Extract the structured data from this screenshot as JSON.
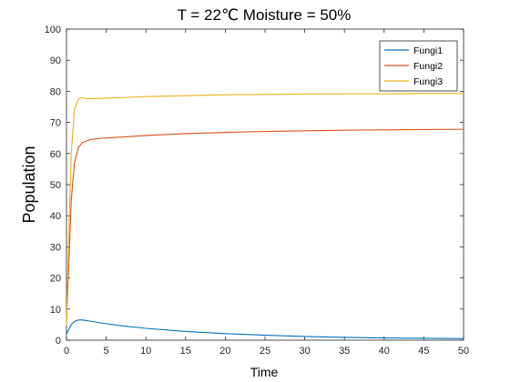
{
  "chart_data": {
    "type": "line",
    "title": "T = 22℃ Moisture = 50%",
    "xlabel": "Time",
    "ylabel": "Population",
    "xlim": [
      0,
      50
    ],
    "ylim": [
      0,
      100
    ],
    "xticks": [
      0,
      5,
      10,
      15,
      20,
      25,
      30,
      35,
      40,
      45,
      50
    ],
    "yticks": [
      0,
      10,
      20,
      30,
      40,
      50,
      60,
      70,
      80,
      90,
      100
    ],
    "grid": false,
    "legend_position": "top-right",
    "series": [
      {
        "name": "Fungi1",
        "color": "#0072BD",
        "x": [
          0,
          0.3,
          0.6,
          1,
          1.5,
          2,
          2.5,
          3,
          4,
          5,
          7,
          10,
          15,
          20,
          25,
          30,
          35,
          40,
          45,
          50
        ],
        "y": [
          2,
          3.5,
          5,
          6,
          6.5,
          6.5,
          6.3,
          6.1,
          5.7,
          5.3,
          4.6,
          3.8,
          2.8,
          2.1,
          1.6,
          1.2,
          0.9,
          0.7,
          0.6,
          0.5
        ]
      },
      {
        "name": "Fungi2",
        "color": "#D95319",
        "x": [
          0,
          0.3,
          0.6,
          1,
          1.5,
          2,
          3,
          4,
          5,
          7,
          10,
          15,
          20,
          25,
          30,
          35,
          40,
          45,
          50
        ],
        "y": [
          5,
          25,
          45,
          57,
          62,
          63.5,
          64.5,
          64.8,
          65,
          65.3,
          65.8,
          66.4,
          66.8,
          67.1,
          67.3,
          67.5,
          67.6,
          67.7,
          67.8
        ]
      },
      {
        "name": "Fungi3",
        "color": "#EDB120",
        "x": [
          0,
          0.3,
          0.6,
          1,
          1.5,
          2,
          2.5,
          3,
          5,
          7,
          10,
          15,
          20,
          25,
          30,
          35,
          40,
          45,
          50
        ],
        "y": [
          5,
          35,
          60,
          74,
          77.5,
          78,
          77.6,
          77.6,
          77.8,
          78.0,
          78.3,
          78.6,
          78.9,
          79.0,
          79.1,
          79.2,
          79.2,
          79.3,
          79.3
        ]
      }
    ]
  }
}
